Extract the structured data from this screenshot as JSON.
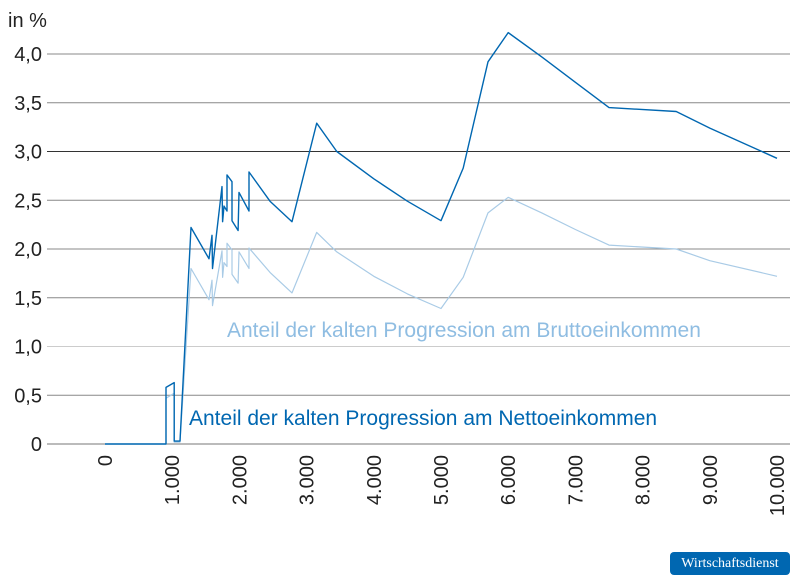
{
  "chart_data": {
    "type": "line",
    "ylabel": "in %",
    "xlim": [
      0,
      10000
    ],
    "ylim": [
      0,
      4.2
    ],
    "grid": true,
    "x_ticks": [
      0,
      1000,
      2000,
      3000,
      4000,
      5000,
      6000,
      7000,
      8000,
      9000,
      10000
    ],
    "x_tick_labels": [
      "0",
      "1.000",
      "2.000",
      "3.000",
      "4.000",
      "5.000",
      "6.000",
      "7.000",
      "8.000",
      "9.000",
      "10.000"
    ],
    "y_ticks": [
      0,
      0.5,
      1.0,
      1.5,
      2.0,
      2.5,
      3.0,
      3.5,
      4.0
    ],
    "y_tick_labels": [
      "0",
      "0,5",
      "1,0",
      "1,5",
      "2,0",
      "2,5",
      "3,0",
      "3,5",
      "4,0"
    ],
    "series": [
      {
        "name": "Anteil der kalten Progression am Bruttoeinkommen",
        "color": "#a9cbe6",
        "label_color": "#8fbde2",
        "x": [
          0,
          908,
          908,
          1030,
          1030,
          1116,
          1280,
          1548,
          1592,
          1600,
          1741,
          1750,
          1771,
          1815,
          1815,
          1890,
          1890,
          1980,
          1994,
          2143,
          2143,
          2455,
          2783,
          3150,
          3450,
          4000,
          4500,
          5000,
          5330,
          5700,
          6000,
          6500,
          7000,
          7500,
          8500,
          9000,
          10000
        ],
        "y": [
          0,
          0,
          0.47,
          0.52,
          0.02,
          0.02,
          1.8,
          1.48,
          1.68,
          1.42,
          1.98,
          1.71,
          1.86,
          1.82,
          2.06,
          1.99,
          1.74,
          1.65,
          1.97,
          1.8,
          2.01,
          1.76,
          1.55,
          2.17,
          1.97,
          1.72,
          1.54,
          1.39,
          1.71,
          2.37,
          2.53,
          2.37,
          2.2,
          2.04,
          2.0,
          1.88,
          1.72
        ]
      },
      {
        "name": "Anteil der kalten Progression am Nettoeinkommen",
        "color": "#0067b1",
        "label_color": "#0067b1",
        "x": [
          0,
          908,
          908,
          1030,
          1030,
          1116,
          1280,
          1548,
          1592,
          1600,
          1741,
          1750,
          1771,
          1815,
          1815,
          1890,
          1890,
          1980,
          1994,
          2143,
          2143,
          2455,
          2783,
          3150,
          3450,
          4000,
          4500,
          5000,
          5330,
          5700,
          6000,
          6500,
          7000,
          7500,
          8500,
          9000,
          10000
        ],
        "y": [
          0,
          0,
          0.58,
          0.63,
          0.03,
          0.03,
          2.22,
          1.9,
          2.14,
          1.8,
          2.64,
          2.28,
          2.44,
          2.39,
          2.76,
          2.69,
          2.29,
          2.19,
          2.58,
          2.39,
          2.79,
          2.49,
          2.28,
          3.29,
          3.0,
          2.72,
          2.49,
          2.29,
          2.83,
          3.92,
          4.22,
          3.97,
          3.71,
          3.45,
          3.41,
          3.24,
          2.93
        ]
      }
    ]
  },
  "branding": {
    "badge": "Wirtschaftsdienst"
  }
}
